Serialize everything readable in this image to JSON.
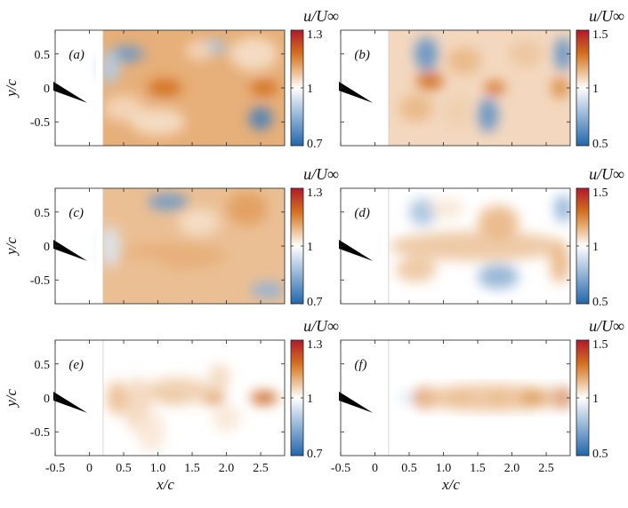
{
  "chart_data": {
    "type": "heatmap",
    "xlabel": "x/c",
    "ylabel": "y/c",
    "colorbar_label": "u/U∞",
    "xlim": [
      -0.5,
      2.85
    ],
    "ylim": [
      -0.85,
      0.85
    ],
    "xticks": [
      "-0.5",
      "0",
      "0.5",
      "1.0",
      "1.5",
      "2.0",
      "2.5"
    ],
    "yticks": [
      "0.5",
      "0",
      "-0.5"
    ],
    "colormap": [
      "#2166ac",
      "#ffffff",
      "#b2182b"
    ],
    "airfoil_color": "#000000",
    "panels": [
      {
        "label": "(a)",
        "clim": [
          0.7,
          1.3
        ],
        "cticks": [
          "1.3",
          "1",
          "0.7"
        ],
        "background": 1.1,
        "blobs": [
          [
            0.55,
            0.5,
            0.25,
            0.12,
            -0.2
          ],
          [
            1.8,
            0.6,
            0.2,
            0.12,
            -0.12
          ],
          [
            2.5,
            -0.45,
            0.17,
            0.17,
            -0.25
          ],
          [
            1.1,
            0.0,
            0.25,
            0.13,
            0.18
          ],
          [
            2.55,
            0.0,
            0.2,
            0.12,
            0.18
          ],
          [
            0.5,
            -0.3,
            0.3,
            0.2,
            0.05
          ],
          [
            1.0,
            -0.5,
            0.4,
            0.2,
            0.04
          ],
          [
            0.3,
            0.3,
            0.15,
            0.25,
            -0.1
          ],
          [
            2.4,
            0.5,
            0.35,
            0.25,
            0.04
          ],
          [
            1.6,
            0.55,
            0.2,
            0.15,
            0.05
          ]
        ]
      },
      {
        "label": "(b)",
        "clim": [
          0.5,
          1.5
        ],
        "cticks": [
          "1.5",
          "1",
          "0.5"
        ],
        "background": 1.08,
        "blobs": [
          [
            0.75,
            0.5,
            0.17,
            0.25,
            -0.35
          ],
          [
            1.65,
            -0.4,
            0.15,
            0.25,
            -0.35
          ],
          [
            2.75,
            0.5,
            0.13,
            0.25,
            -0.35
          ],
          [
            0.8,
            0.1,
            0.2,
            0.13,
            0.3
          ],
          [
            1.75,
            0.0,
            0.15,
            0.1,
            0.3
          ],
          [
            2.7,
            0.0,
            0.12,
            0.15,
            0.25
          ],
          [
            0.6,
            -0.3,
            0.25,
            0.2,
            0.15
          ],
          [
            1.3,
            0.4,
            0.25,
            0.2,
            0.15
          ],
          [
            2.2,
            0.5,
            0.25,
            0.2,
            0.12
          ],
          [
            1.2,
            -0.35,
            0.2,
            0.25,
            0.1
          ]
        ]
      },
      {
        "label": "(c)",
        "clim": [
          0.7,
          1.3
        ],
        "cticks": [
          "1.3",
          "1",
          "0.7"
        ],
        "background": 1.08,
        "blobs": [
          [
            1.15,
            0.65,
            0.3,
            0.12,
            -0.2
          ],
          [
            2.6,
            -0.65,
            0.25,
            0.12,
            -0.15
          ],
          [
            1.2,
            -0.15,
            0.8,
            0.2,
            0.1
          ],
          [
            0.7,
            -0.35,
            0.45,
            0.2,
            0.08
          ],
          [
            2.3,
            0.55,
            0.3,
            0.25,
            0.12
          ],
          [
            1.6,
            0.35,
            0.3,
            0.2,
            0.04
          ],
          [
            0.3,
            0.0,
            0.15,
            0.3,
            -0.05
          ]
        ]
      },
      {
        "label": "(d)",
        "clim": [
          0.5,
          1.5
        ],
        "cticks": [
          "1.5",
          "1",
          "0.5"
        ],
        "background": 1.0,
        "blobs": [
          [
            0.7,
            0.5,
            0.2,
            0.2,
            -0.2
          ],
          [
            1.8,
            -0.45,
            0.3,
            0.18,
            -0.25
          ],
          [
            2.75,
            0.55,
            0.13,
            0.2,
            -0.25
          ],
          [
            1.5,
            0.0,
            1.3,
            0.22,
            0.12
          ],
          [
            1.8,
            0.35,
            0.3,
            0.25,
            0.15
          ],
          [
            0.6,
            -0.35,
            0.3,
            0.18,
            0.12
          ],
          [
            2.7,
            -0.25,
            0.15,
            0.3,
            0.15
          ],
          [
            1.05,
            0.55,
            0.25,
            0.15,
            0.05
          ]
        ]
      },
      {
        "label": "(e)",
        "clim": [
          0.7,
          1.3
        ],
        "cticks": [
          "1.3",
          "1",
          "0.7"
        ],
        "background": 1.0,
        "blobs": [
          [
            1.2,
            0.0,
            0.2,
            0.1,
            0.18
          ],
          [
            1.8,
            0.0,
            0.18,
            0.1,
            0.13
          ],
          [
            2.55,
            0.0,
            0.2,
            0.1,
            0.2
          ],
          [
            1.3,
            0.1,
            0.5,
            0.2,
            0.06
          ],
          [
            0.7,
            -0.1,
            0.2,
            0.4,
            0.05
          ],
          [
            0.4,
            0.0,
            0.15,
            0.25,
            0.08
          ],
          [
            1.9,
            0.3,
            0.15,
            0.2,
            0.05
          ],
          [
            2.0,
            -0.3,
            0.2,
            0.2,
            0.03
          ],
          [
            0.9,
            -0.5,
            0.2,
            0.3,
            0.03
          ]
        ]
      },
      {
        "label": "(f)",
        "clim": [
          0.5,
          1.5
        ],
        "cticks": [
          "1.5",
          "1",
          "0.5"
        ],
        "background": 1.0,
        "blobs": [
          [
            0.75,
            0.0,
            0.2,
            0.15,
            0.3
          ],
          [
            1.25,
            0.0,
            0.2,
            0.13,
            0.28
          ],
          [
            1.8,
            0.0,
            0.2,
            0.13,
            0.26
          ],
          [
            2.7,
            0.0,
            0.18,
            0.15,
            0.35
          ],
          [
            1.7,
            0.0,
            1.1,
            0.2,
            0.12
          ],
          [
            0.45,
            0.0,
            0.1,
            0.08,
            -0.08
          ],
          [
            2.3,
            0.0,
            0.18,
            0.12,
            0.2
          ]
        ]
      }
    ]
  }
}
